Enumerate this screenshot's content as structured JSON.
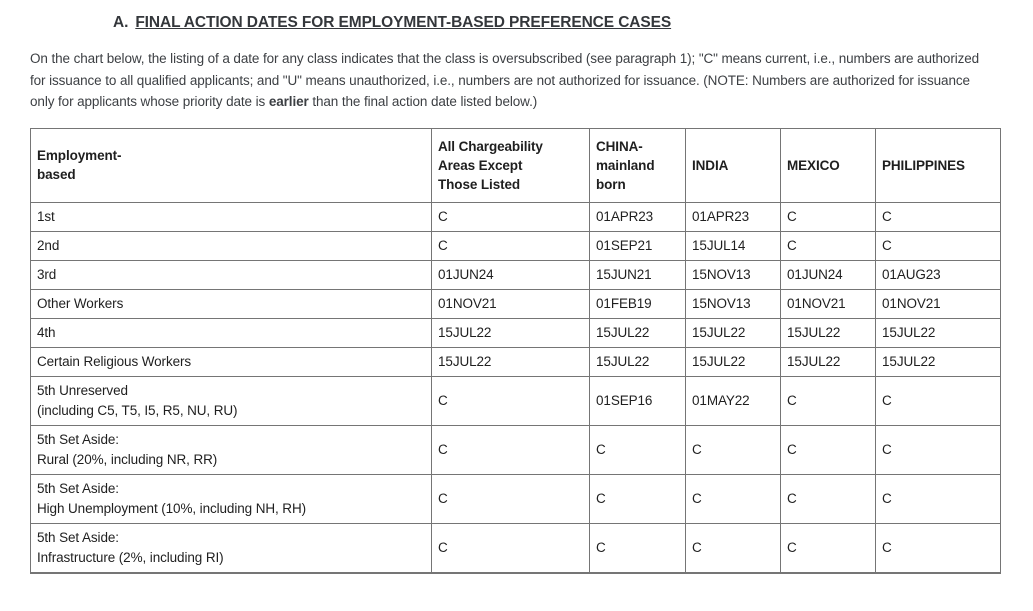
{
  "page": {
    "title_prefix": "A.",
    "title": "FINAL ACTION DATES FOR EMPLOYMENT-BASED PREFERENCE CASES",
    "intro": {
      "before_bold": "On the chart below, the listing of a date for any class indicates that the class is oversubscribed (see paragraph 1); \"C\" means current, i.e., numbers are authorized for issuance to all qualified applicants; and \"U\" means unauthorized, i.e., numbers are not authorized for issuance. (NOTE: Numbers are authorized for issuance only for applicants whose priority date is ",
      "bold_word": "earlier",
      "after_bold": " than the final action date listed below.)"
    }
  },
  "colors": {
    "background": "#ffffff",
    "title_text": "#34373b",
    "body_text": "#3c3f43",
    "table_text": "#1f1f1f",
    "table_border": "#757575"
  },
  "table": {
    "columns": [
      "Employment-\nbased",
      "All Chargeability\nAreas Except\nThose Listed",
      "CHINA-\nmainland\nborn",
      "INDIA",
      "MEXICO",
      "PHILIPPINES"
    ],
    "rows": [
      {
        "label": "1st",
        "values": [
          "C",
          "01APR23",
          "01APR23",
          "C",
          "C"
        ]
      },
      {
        "label": "2nd",
        "values": [
          "C",
          "01SEP21",
          "15JUL14",
          "C",
          "C"
        ]
      },
      {
        "label": "3rd",
        "values": [
          "01JUN24",
          "15JUN21",
          "15NOV13",
          "01JUN24",
          "01AUG23"
        ]
      },
      {
        "label": "Other Workers",
        "values": [
          "01NOV21",
          "01FEB19",
          "15NOV13",
          "01NOV21",
          "01NOV21"
        ]
      },
      {
        "label": "4th",
        "values": [
          "15JUL22",
          "15JUL22",
          "15JUL22",
          "15JUL22",
          "15JUL22"
        ]
      },
      {
        "label": "Certain Religious Workers",
        "values": [
          "15JUL22",
          "15JUL22",
          "15JUL22",
          "15JUL22",
          "15JUL22"
        ]
      },
      {
        "label": "5th Unreserved\n(including C5, T5, I5, R5, NU, RU)",
        "values": [
          "C",
          "01SEP16",
          "01MAY22",
          "C",
          "C"
        ]
      },
      {
        "label": "5th Set Aside:\nRural (20%, including NR, RR)",
        "values": [
          "C",
          "C",
          "C",
          "C",
          "C"
        ]
      },
      {
        "label": "5th Set Aside:\nHigh Unemployment (10%, including NH, RH)",
        "values": [
          "C",
          "C",
          "C",
          "C",
          "C"
        ]
      },
      {
        "label": "5th Set Aside:\nInfrastructure (2%, including RI)",
        "values": [
          "C",
          "C",
          "C",
          "C",
          "C"
        ]
      }
    ]
  }
}
